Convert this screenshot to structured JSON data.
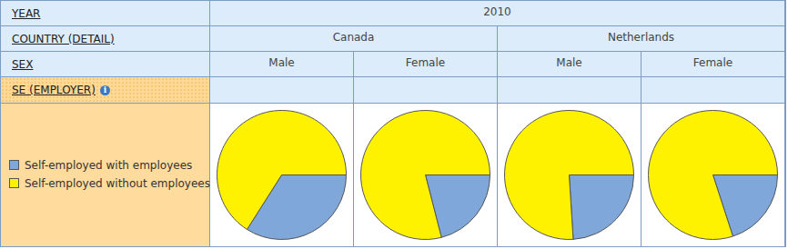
{
  "table": {
    "row_headers": [
      "YEAR",
      "COUNTRY (DETAIL)",
      "SEX",
      "SE (EMPLOYER)"
    ],
    "year": "2010",
    "countries": [
      "Canada",
      "Netherlands"
    ],
    "sexes": [
      "Male",
      "Female",
      "Male",
      "Female"
    ]
  },
  "chart_data": [
    {
      "type": "pie",
      "categories": [
        "Self-employed with employees",
        "Self-employed without employees"
      ],
      "values": [
        34,
        66
      ],
      "colors": [
        "#7fa7da",
        "#fff200"
      ]
    },
    {
      "type": "pie",
      "categories": [
        "Self-employed with employees",
        "Self-employed without employees"
      ],
      "values": [
        21,
        79
      ],
      "colors": [
        "#7fa7da",
        "#fff200"
      ]
    },
    {
      "type": "pie",
      "categories": [
        "Self-employed with employees",
        "Self-employed without employees"
      ],
      "values": [
        24,
        76
      ],
      "colors": [
        "#7fa7da",
        "#fff200"
      ]
    },
    {
      "type": "pie",
      "categories": [
        "Self-employed with employees",
        "Self-employed without employees"
      ],
      "values": [
        20,
        80
      ],
      "colors": [
        "#7fa7da",
        "#fff200"
      ]
    }
  ]
}
